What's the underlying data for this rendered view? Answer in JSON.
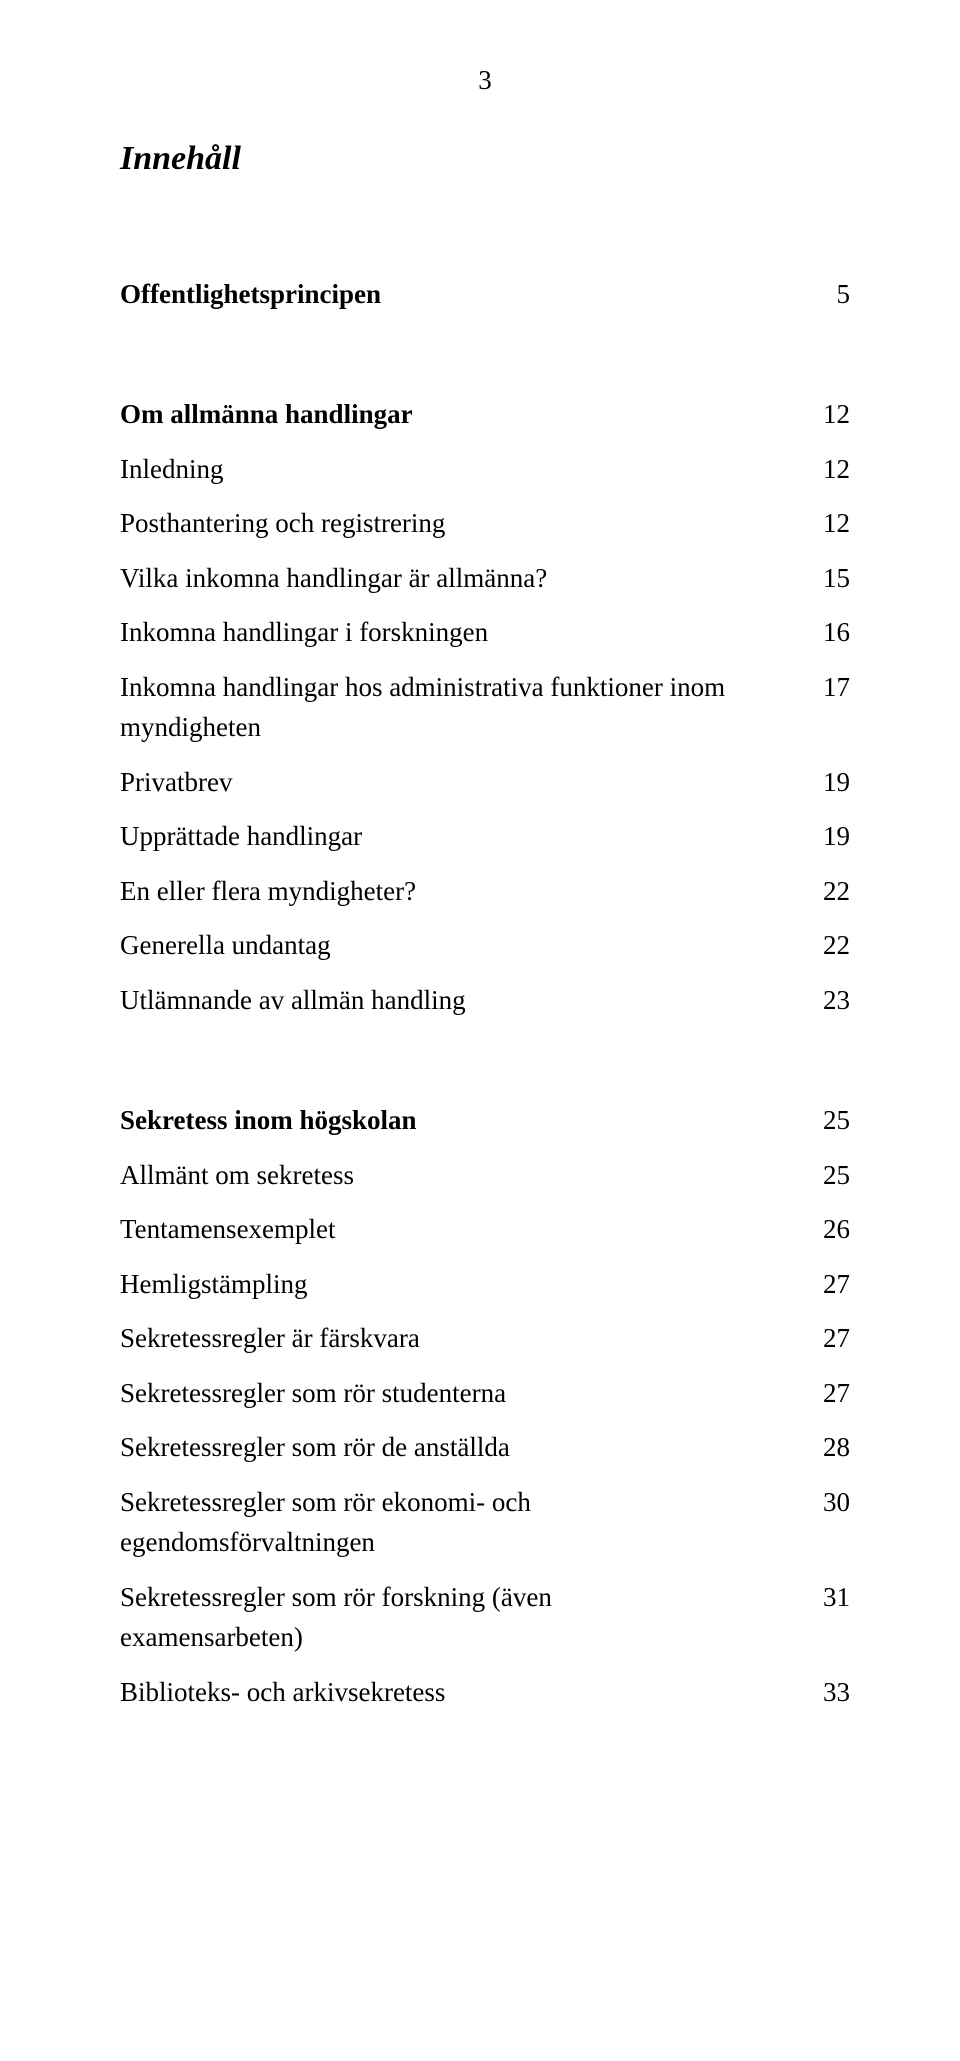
{
  "pageNumber": "3",
  "title": "Innehåll",
  "entries": [
    {
      "label": "Offentlighetsprincipen",
      "page": "5",
      "bold": true,
      "gap": "none"
    },
    {
      "label": "Om allmänna handlingar",
      "page": "12",
      "bold": true,
      "gap": "big"
    },
    {
      "label": "Inledning",
      "page": "12",
      "bold": false,
      "gap": "med"
    },
    {
      "label": "Posthantering och registrering",
      "page": "12",
      "bold": false,
      "gap": "med"
    },
    {
      "label": "Vilka inkomna handlingar är allmänna?",
      "page": "15",
      "bold": false,
      "gap": "med"
    },
    {
      "label": "Inkomna handlingar i forskningen",
      "page": "16",
      "bold": false,
      "gap": "med"
    },
    {
      "label": "Inkomna handlingar hos administrativa funktioner inom myndigheten",
      "page": "17",
      "bold": false,
      "gap": "med"
    },
    {
      "label": "Privatbrev",
      "page": "19",
      "bold": false,
      "gap": "med"
    },
    {
      "label": "Upprättade handlingar",
      "page": "19",
      "bold": false,
      "gap": "med"
    },
    {
      "label": "En eller flera myndigheter?",
      "page": "22",
      "bold": false,
      "gap": "med"
    },
    {
      "label": "Generella undantag",
      "page": "22",
      "bold": false,
      "gap": "med"
    },
    {
      "label": "Utlämnande av allmän handling",
      "page": "23",
      "bold": false,
      "gap": "med"
    },
    {
      "label": "Sekretess inom högskolan",
      "page": "25",
      "bold": true,
      "gap": "big"
    },
    {
      "label": "Allmänt om sekretess",
      "page": "25",
      "bold": false,
      "gap": "med"
    },
    {
      "label": "Tentamensexemplet",
      "page": "26",
      "bold": false,
      "gap": "med"
    },
    {
      "label": "Hemligstämpling",
      "page": "27",
      "bold": false,
      "gap": "med"
    },
    {
      "label": "Sekretessregler är färskvara",
      "page": "27",
      "bold": false,
      "gap": "med"
    },
    {
      "label": "Sekretessregler som rör studenterna",
      "page": "27",
      "bold": false,
      "gap": "med"
    },
    {
      "label": "Sekretessregler som rör de anställda",
      "page": "28",
      "bold": false,
      "gap": "med"
    },
    {
      "label": "Sekretessregler som rör ekonomi- och egendomsförvaltningen",
      "page": "30",
      "bold": false,
      "gap": "med"
    },
    {
      "label": "Sekretessregler som rör forskning (även examensarbeten)",
      "page": "31",
      "bold": false,
      "gap": "med"
    },
    {
      "label": "Biblioteks- och arkivsekretess",
      "page": "33",
      "bold": false,
      "gap": "med"
    }
  ]
}
